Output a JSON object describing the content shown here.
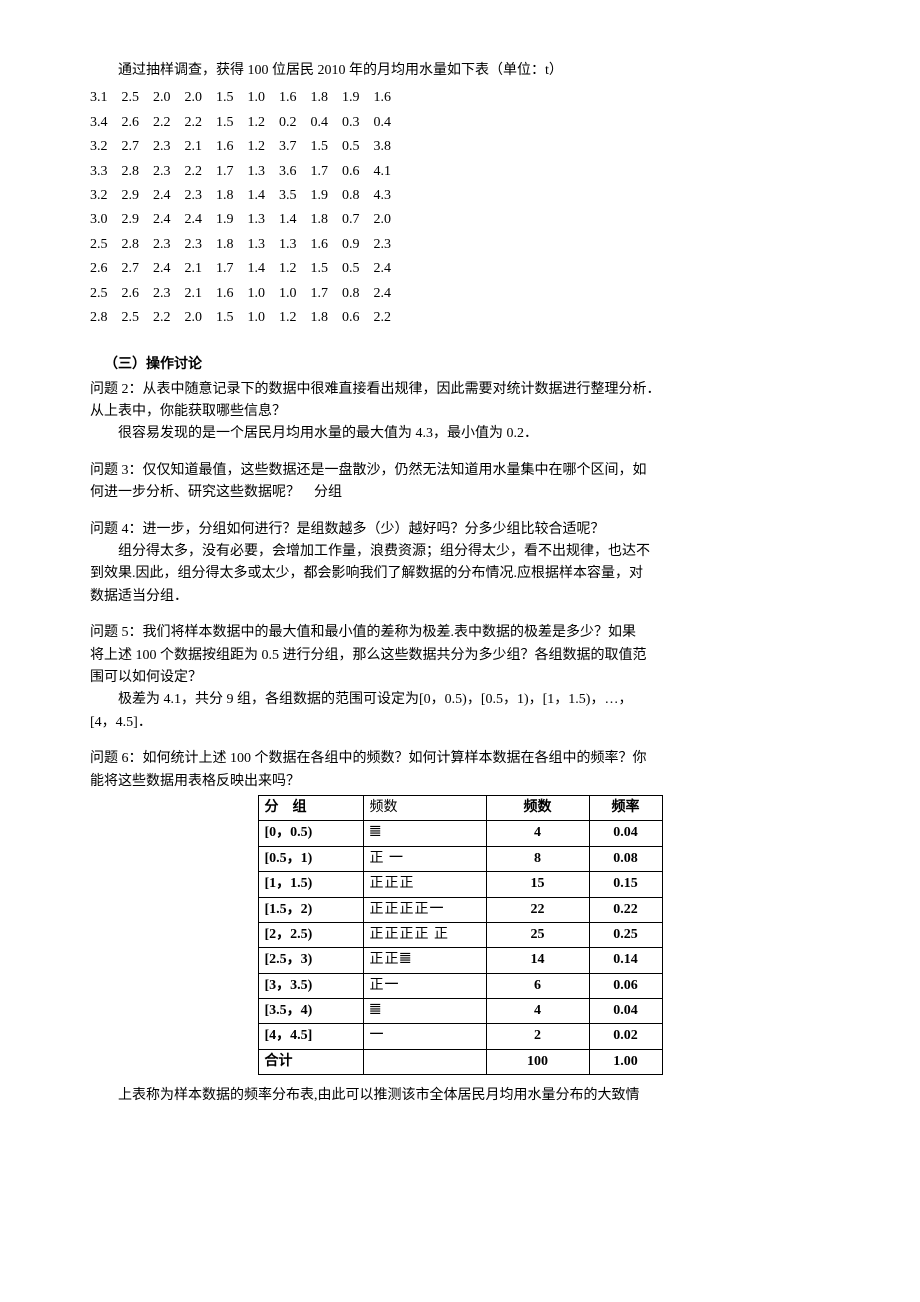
{
  "intro": "通过抽样调查，获得 100 位居民 2010 年的月均用水量如下表（单位：t）",
  "data_rows": [
    [
      "3.1",
      "2.5",
      "2.0",
      "2.0",
      "1.5",
      "1.0",
      "1.6",
      "1.8",
      "1.9",
      "1.6"
    ],
    [
      "3.4",
      "2.6",
      "2.2",
      "2.2",
      "1.5",
      "1.2",
      "0.2",
      "0.4",
      "0.3",
      "0.4"
    ],
    [
      "3.2",
      "2.7",
      "2.3",
      "2.1",
      "1.6",
      "1.2",
      "3.7",
      "1.5",
      "0.5",
      "3.8"
    ],
    [
      "3.3",
      "2.8",
      "2.3",
      "2.2",
      "1.7",
      "1.3",
      "3.6",
      "1.7",
      "0.6",
      "4.1"
    ],
    [
      "3.2",
      "2.9",
      "2.4",
      "2.3",
      "1.8",
      "1.4",
      "3.5",
      "1.9",
      "0.8",
      "4.3"
    ],
    [
      "3.0",
      "2.9",
      "2.4",
      "2.4",
      "1.9",
      "1.3",
      "1.4",
      "1.8",
      "0.7",
      "2.0"
    ],
    [
      "2.5",
      "2.8",
      "2.3",
      "2.3",
      "1.8",
      "1.3",
      "1.3",
      "1.6",
      "0.9",
      "2.3"
    ],
    [
      "2.6",
      "2.7",
      "2.4",
      "2.1",
      "1.7",
      "1.4",
      "1.2",
      "1.5",
      "0.5",
      "2.4"
    ],
    [
      "2.5",
      "2.6",
      "2.3",
      "2.1",
      "1.6",
      "1.0",
      "1.0",
      "1.7",
      "0.8",
      "2.4"
    ],
    [
      "2.8",
      "2.5",
      "2.2",
      "2.0",
      "1.5",
      "1.0",
      "1.2",
      "1.8",
      "0.6",
      "2.2"
    ]
  ],
  "section3_title": "（三）操作讨论",
  "q2a": "问题 2：从表中随意记录下的数据中很难直接看出规律，因此需要对统计数据进行整理分析．",
  "q2b": "从上表中，你能获取哪些信息？",
  "q2ans": "很容易发现的是一个居民月均用水量的最大值为 4.3，最小值为 0.2．",
  "q3a": "问题 3：仅仅知道最值，这些数据还是一盘散沙，仍然无法知道用水量集中在哪个区间，如",
  "q3b": "何进一步分析、研究这些数据呢？　分组",
  "q4a": "问题 4：进一步，分组如何进行？是组数越多（少）越好吗？分多少组比较合适呢？",
  "q4b": "组分得太多，没有必要，会增加工作量，浪费资源；组分得太少，看不出规律，也达不",
  "q4c": "到效果.因此，组分得太多或太少，都会影响我们了解数据的分布情况.应根据样本容量，对",
  "q4d": "数据适当分组．",
  "q5a": "问题 5：我们将样本数据中的最大值和最小值的差称为极差.表中数据的极差是多少？如果",
  "q5b": "将上述 100 个数据按组距为 0.5 进行分组，那么这些数据共分为多少组？各组数据的取值范",
  "q5c": "围可以如何设定？",
  "q5ans1": "极差为 4.1，共分 9 组，各组数据的范围可设定为[0，0.5)，[0.5，1)，[1，1.5)，…，",
  "q5ans2": "[4，4.5]．",
  "q6a": "问题 6：如何统计上述 100 个数据在各组中的频数？如何计算样本数据在各组中的频率？你",
  "q6b": "能将这些数据用表格反映出来吗？",
  "freq_table": {
    "headers": [
      "分　组",
      "频数",
      "频数",
      "频率"
    ],
    "rows": [
      {
        "group": "[0，0.5)",
        "tally": "𝍤",
        "count": "4",
        "rate": "0.04"
      },
      {
        "group": "[0.5，1)",
        "tally": "正 ㆒",
        "count": "8",
        "rate": "0.08"
      },
      {
        "group": "[1，1.5)",
        "tally": "正正正",
        "count": "15",
        "rate": "0.15"
      },
      {
        "group": "[1.5，2)",
        "tally": "正正正正㆒",
        "count": "22",
        "rate": "0.22"
      },
      {
        "group": "[2，2.5)",
        "tally": "正正正正 正",
        "count": "25",
        "rate": "0.25"
      },
      {
        "group": "[2.5，3)",
        "tally": "正正𝍤",
        "count": "14",
        "rate": "0.14"
      },
      {
        "group": "[3，3.5)",
        "tally": "正㆒",
        "count": "6",
        "rate": "0.06"
      },
      {
        "group": "[3.5，4)",
        "tally": "𝍤",
        "count": "4",
        "rate": "0.04"
      },
      {
        "group": "[4，4.5]",
        "tally": "㆒",
        "count": "2",
        "rate": "0.02"
      },
      {
        "group": "合计",
        "tally": "",
        "count": "100",
        "rate": "1.00"
      }
    ]
  },
  "closing": "上表称为样本数据的频率分布表,由此可以推测该市全体居民月均用水量分布的大致情"
}
